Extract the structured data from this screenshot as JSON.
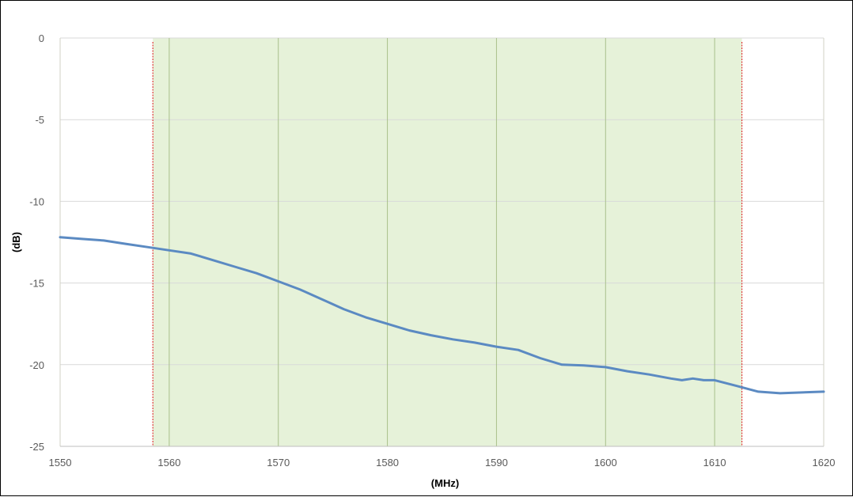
{
  "chart_data": {
    "type": "line",
    "title": "",
    "xlabel": "(MHz)",
    "ylabel": "(dB)",
    "xlim": [
      1550,
      1620
    ],
    "ylim": [
      -25,
      0
    ],
    "xticks": [
      1550,
      1560,
      1570,
      1580,
      1590,
      1600,
      1610,
      1620
    ],
    "yticks": [
      0,
      -5,
      -10,
      -15,
      -20,
      -25
    ],
    "grid": true,
    "legend": "none",
    "shaded_band": {
      "x_start": 1558.5,
      "x_end": 1612.5,
      "color": "#e6f2d9"
    },
    "markers": [
      {
        "x": 1558.5,
        "color": "#e03a3a",
        "style": "dotted"
      },
      {
        "x": 1612.5,
        "color": "#e03a3a",
        "style": "dotted"
      }
    ],
    "series": [
      {
        "color": "#5b8ac2",
        "x": [
          1550,
          1552,
          1554,
          1556,
          1558,
          1560,
          1562,
          1564,
          1566,
          1568,
          1570,
          1572,
          1574,
          1576,
          1578,
          1580,
          1582,
          1584,
          1586,
          1588,
          1590,
          1592,
          1594,
          1596,
          1598,
          1600,
          1602,
          1604,
          1606,
          1607,
          1608,
          1609,
          1610,
          1612,
          1614,
          1616,
          1618,
          1620
        ],
        "y": [
          -12.2,
          -12.3,
          -12.4,
          -12.6,
          -12.8,
          -13.0,
          -13.2,
          -13.6,
          -14.0,
          -14.4,
          -14.9,
          -15.4,
          -16.0,
          -16.6,
          -17.1,
          -17.5,
          -17.9,
          -18.2,
          -18.45,
          -18.65,
          -18.9,
          -19.1,
          -19.6,
          -20.0,
          -20.05,
          -20.15,
          -20.4,
          -20.6,
          -20.85,
          -20.95,
          -20.85,
          -20.95,
          -20.95,
          -21.3,
          -21.65,
          -21.75,
          -21.7,
          -21.65
        ]
      }
    ]
  }
}
